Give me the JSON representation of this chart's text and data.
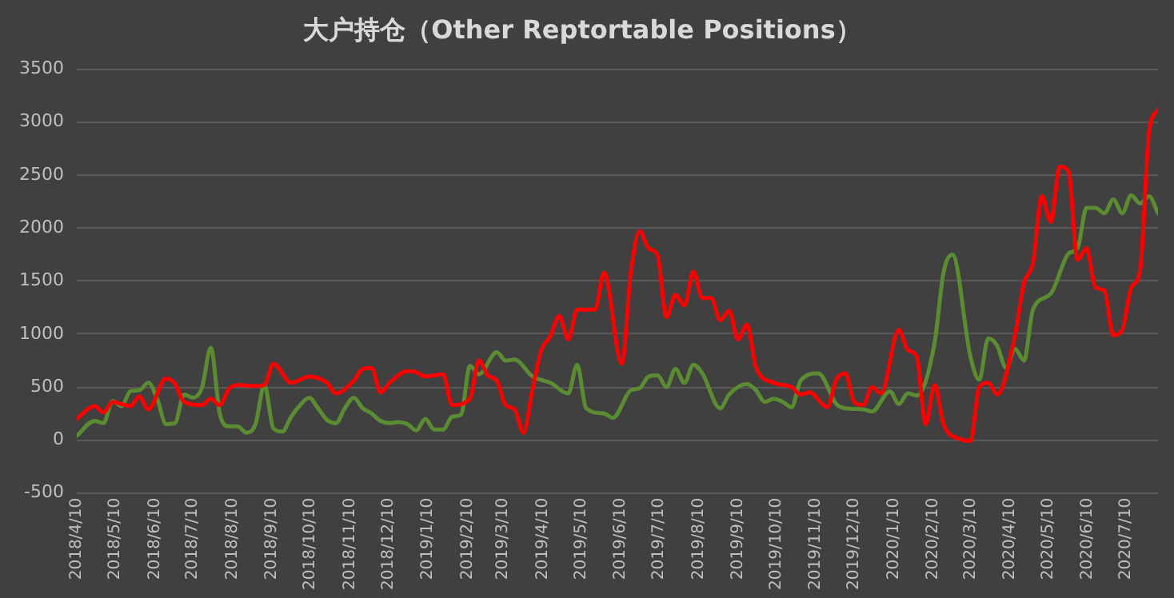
{
  "chart_data": {
    "type": "line",
    "title": "大户持仓（Other Reptortable Positions）",
    "xlim": [
      "2018-04-10",
      "2020-08-04"
    ],
    "xticks": [
      {
        "value": "2018-04-10",
        "label": "2018/4/10"
      },
      {
        "value": "2018-05-10",
        "label": "2018/5/10"
      },
      {
        "value": "2018-06-10",
        "label": "2018/6/10"
      },
      {
        "value": "2018-07-10",
        "label": "2018/7/10"
      },
      {
        "value": "2018-08-10",
        "label": "2018/8/10"
      },
      {
        "value": "2018-09-10",
        "label": "2018/9/10"
      },
      {
        "value": "2018-10-10",
        "label": "2018/10/10"
      },
      {
        "value": "2018-11-10",
        "label": "2018/11/10"
      },
      {
        "value": "2018-12-10",
        "label": "2018/12/10"
      },
      {
        "value": "2019-01-10",
        "label": "2019/1/10"
      },
      {
        "value": "2019-02-10",
        "label": "2019/2/10"
      },
      {
        "value": "2019-03-10",
        "label": "2019/3/10"
      },
      {
        "value": "2019-04-10",
        "label": "2019/4/10"
      },
      {
        "value": "2019-05-10",
        "label": "2019/5/10"
      },
      {
        "value": "2019-06-10",
        "label": "2019/6/10"
      },
      {
        "value": "2019-07-10",
        "label": "2019/7/10"
      },
      {
        "value": "2019-08-10",
        "label": "2019/8/10"
      },
      {
        "value": "2019-09-10",
        "label": "2019/9/10"
      },
      {
        "value": "2019-10-10",
        "label": "2019/10/10"
      },
      {
        "value": "2019-11-10",
        "label": "2019/11/10"
      },
      {
        "value": "2019-12-10",
        "label": "2019/12/10"
      },
      {
        "value": "2020-01-10",
        "label": "2020/1/10"
      },
      {
        "value": "2020-02-10",
        "label": "2020/2/10"
      },
      {
        "value": "2020-03-10",
        "label": "2020/3/10"
      },
      {
        "value": "2020-04-10",
        "label": "2020/4/10"
      },
      {
        "value": "2020-05-10",
        "label": "2020/5/10"
      },
      {
        "value": "2020-06-10",
        "label": "2020/6/10"
      },
      {
        "value": "2020-07-10",
        "label": "2020/7/10"
      }
    ],
    "ylim": [
      -500,
      3500
    ],
    "yticks": [
      -500,
      0,
      500,
      1000,
      1500,
      2000,
      2500,
      3000,
      3500
    ],
    "grid": "y",
    "legend": false,
    "marker": "none",
    "line_style": "solid",
    "series": [
      {
        "color": "#ff0000",
        "x": [
          "2018-04-10",
          "2018-04-24",
          "2018-05-01",
          "2018-05-08",
          "2018-05-15",
          "2018-05-22",
          "2018-05-29",
          "2018-06-05",
          "2018-06-19",
          "2018-06-26",
          "2018-07-03",
          "2018-07-17",
          "2018-07-24",
          "2018-07-31",
          "2018-08-07",
          "2018-08-14",
          "2018-08-28",
          "2018-09-04",
          "2018-09-11",
          "2018-09-25",
          "2018-10-09",
          "2018-10-23",
          "2018-10-30",
          "2018-11-13",
          "2018-11-20",
          "2018-11-27",
          "2018-12-04",
          "2018-12-11",
          "2018-12-25",
          "2019-01-01",
          "2019-01-08",
          "2019-01-22",
          "2019-01-29",
          "2019-02-12",
          "2019-02-19",
          "2019-02-26",
          "2019-03-05",
          "2019-03-12",
          "2019-03-19",
          "2019-03-26",
          "2019-04-02",
          "2019-04-09",
          "2019-04-16",
          "2019-04-23",
          "2019-04-30",
          "2019-05-07",
          "2019-05-21",
          "2019-05-28",
          "2019-06-11",
          "2019-06-18",
          "2019-06-25",
          "2019-07-02",
          "2019-07-09",
          "2019-07-16",
          "2019-07-23",
          "2019-07-30",
          "2019-08-06",
          "2019-08-13",
          "2019-08-20",
          "2019-08-27",
          "2019-09-03",
          "2019-09-10",
          "2019-09-17",
          "2019-09-24",
          "2019-10-08",
          "2019-10-22",
          "2019-10-29",
          "2019-11-05",
          "2019-11-19",
          "2019-11-26",
          "2019-12-03",
          "2019-12-10",
          "2019-12-17",
          "2019-12-24",
          "2019-12-31",
          "2020-01-14",
          "2020-01-21",
          "2020-01-28",
          "2020-02-04",
          "2020-02-11",
          "2020-02-18",
          "2020-03-03",
          "2020-03-10",
          "2020-03-17",
          "2020-03-24",
          "2020-03-31",
          "2020-04-14",
          "2020-04-21",
          "2020-04-28",
          "2020-05-05",
          "2020-05-12",
          "2020-05-19",
          "2020-05-26",
          "2020-06-02",
          "2020-06-09",
          "2020-06-16",
          "2020-06-23",
          "2020-06-30",
          "2020-07-07",
          "2020-07-14",
          "2020-07-21",
          "2020-07-28",
          "2020-08-04"
        ],
        "values": [
          200,
          320,
          260,
          360,
          340,
          320,
          410,
          290,
          580,
          530,
          360,
          330,
          390,
          330,
          480,
          520,
          510,
          520,
          720,
          540,
          600,
          540,
          440,
          560,
          670,
          680,
          450,
          540,
          650,
          640,
          600,
          620,
          330,
          390,
          750,
          610,
          560,
          330,
          290,
          70,
          480,
          850,
          980,
          1170,
          950,
          1230,
          1230,
          1580,
          720,
          1580,
          1970,
          1810,
          1740,
          1160,
          1370,
          1270,
          1590,
          1340,
          1340,
          1130,
          1220,
          950,
          1090,
          690,
          540,
          500,
          430,
          450,
          310,
          570,
          630,
          360,
          330,
          500,
          440,
          1040,
          850,
          790,
          150,
          520,
          150,
          5,
          -10,
          500,
          540,
          430,
          990,
          1480,
          1670,
          2300,
          2060,
          2580,
          2530,
          1700,
          1810,
          1440,
          1410,
          990,
          1040,
          1440,
          1600,
          2910,
          3120
        ]
      },
      {
        "color": "#5b8c32",
        "x": [
          "2018-04-10",
          "2018-04-24",
          "2018-05-01",
          "2018-05-08",
          "2018-05-15",
          "2018-05-22",
          "2018-05-29",
          "2018-06-05",
          "2018-06-12",
          "2018-06-19",
          "2018-06-26",
          "2018-07-03",
          "2018-07-10",
          "2018-07-17",
          "2018-07-24",
          "2018-07-31",
          "2018-08-07",
          "2018-08-14",
          "2018-08-21",
          "2018-08-28",
          "2018-09-04",
          "2018-09-11",
          "2018-09-18",
          "2018-09-25",
          "2018-10-02",
          "2018-10-09",
          "2018-10-16",
          "2018-10-23",
          "2018-10-30",
          "2018-11-06",
          "2018-11-13",
          "2018-11-20",
          "2018-11-27",
          "2018-12-04",
          "2018-12-11",
          "2018-12-18",
          "2018-12-25",
          "2019-01-01",
          "2019-01-08",
          "2019-01-15",
          "2019-01-22",
          "2019-01-29",
          "2019-02-05",
          "2019-02-12",
          "2019-02-19",
          "2019-03-05",
          "2019-03-12",
          "2019-03-19",
          "2019-04-02",
          "2019-04-16",
          "2019-04-30",
          "2019-05-07",
          "2019-05-14",
          "2019-05-28",
          "2019-06-04",
          "2019-06-18",
          "2019-06-25",
          "2019-07-02",
          "2019-07-09",
          "2019-07-16",
          "2019-07-23",
          "2019-07-30",
          "2019-08-06",
          "2019-08-13",
          "2019-08-27",
          "2019-09-03",
          "2019-09-17",
          "2019-09-24",
          "2019-10-01",
          "2019-10-08",
          "2019-10-15",
          "2019-10-22",
          "2019-10-29",
          "2019-11-12",
          "2019-11-26",
          "2019-12-03",
          "2019-12-17",
          "2019-12-24",
          "2020-01-07",
          "2020-01-14",
          "2020-01-21",
          "2020-01-28",
          "2020-02-11",
          "2020-02-18",
          "2020-02-25",
          "2020-03-10",
          "2020-03-17",
          "2020-03-24",
          "2020-03-31",
          "2020-04-07",
          "2020-04-14",
          "2020-04-21",
          "2020-04-28",
          "2020-05-12",
          "2020-05-26",
          "2020-06-02",
          "2020-06-09",
          "2020-06-16",
          "2020-06-23",
          "2020-06-30",
          "2020-07-07",
          "2020-07-14",
          "2020-07-21",
          "2020-07-28",
          "2020-08-04"
        ],
        "values": [
          40,
          180,
          160,
          370,
          320,
          460,
          470,
          540,
          390,
          150,
          160,
          430,
          400,
          490,
          870,
          250,
          130,
          130,
          70,
          150,
          520,
          110,
          80,
          220,
          330,
          400,
          300,
          190,
          160,
          300,
          400,
          300,
          250,
          180,
          160,
          170,
          150,
          90,
          200,
          100,
          100,
          220,
          240,
          700,
          620,
          830,
          750,
          760,
          600,
          540,
          440,
          710,
          300,
          250,
          210,
          470,
          490,
          600,
          610,
          500,
          670,
          540,
          710,
          630,
          300,
          430,
          530,
          470,
          360,
          390,
          360,
          310,
          560,
          630,
          340,
          300,
          290,
          270,
          460,
          340,
          440,
          420,
          920,
          1580,
          1750,
          790,
          570,
          960,
          890,
          680,
          860,
          750,
          1230,
          1380,
          1760,
          1810,
          2190,
          2190,
          2140,
          2270,
          2140,
          2310,
          2230,
          2300,
          2140
        ]
      }
    ]
  }
}
